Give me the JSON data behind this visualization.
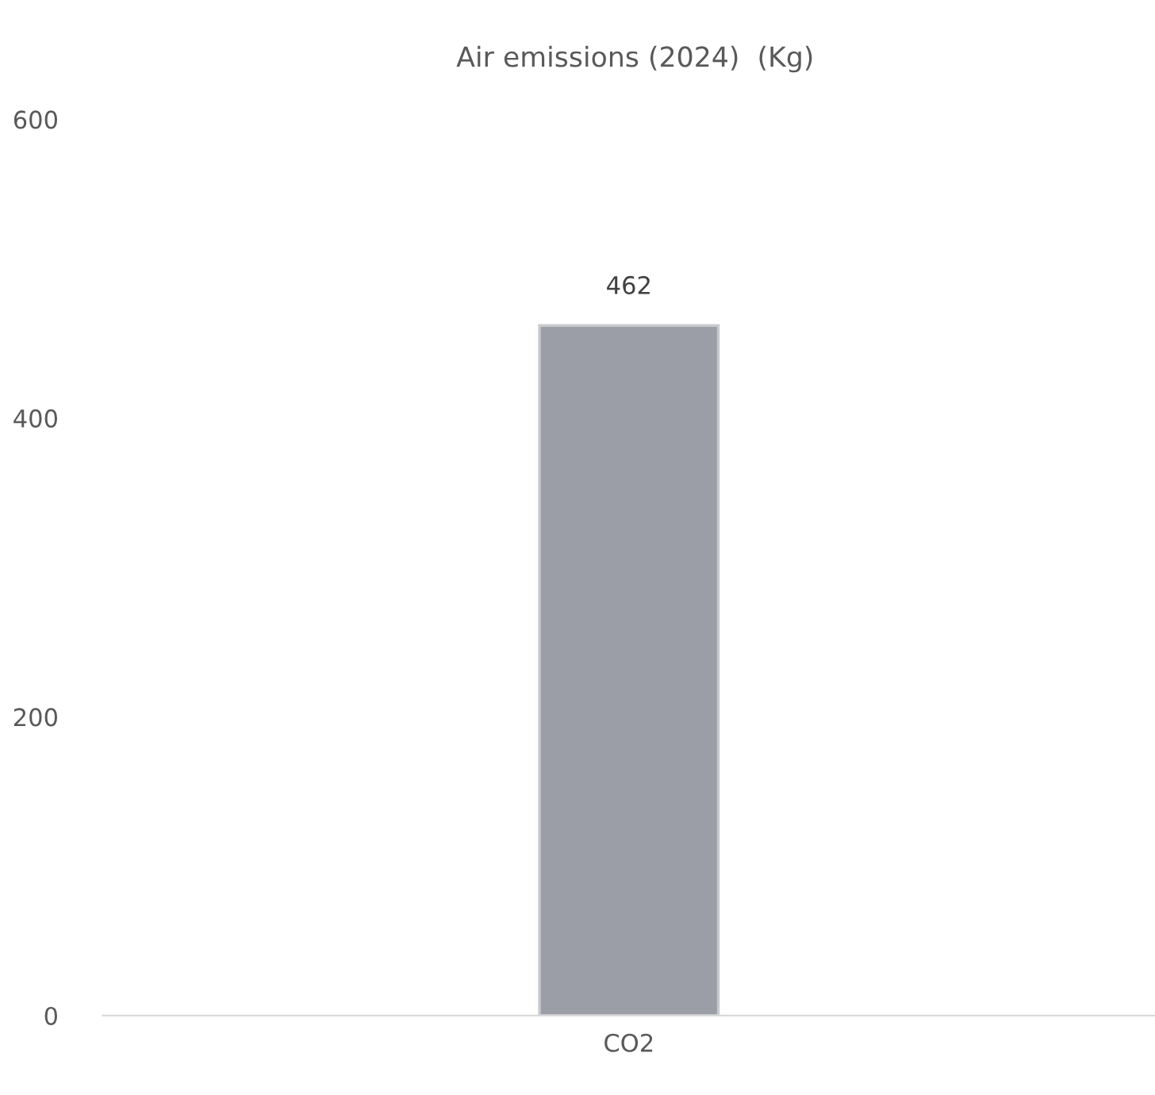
{
  "chart_data": {
    "type": "bar",
    "title": "Air emissions (2024)  (Kg)",
    "categories": [
      "CO2"
    ],
    "values": [
      462
    ],
    "color": "#9b9ea6",
    "ylim": [
      0,
      600
    ],
    "yticks": [
      0,
      200,
      400,
      600
    ],
    "grid": false,
    "data_labels": true
  }
}
